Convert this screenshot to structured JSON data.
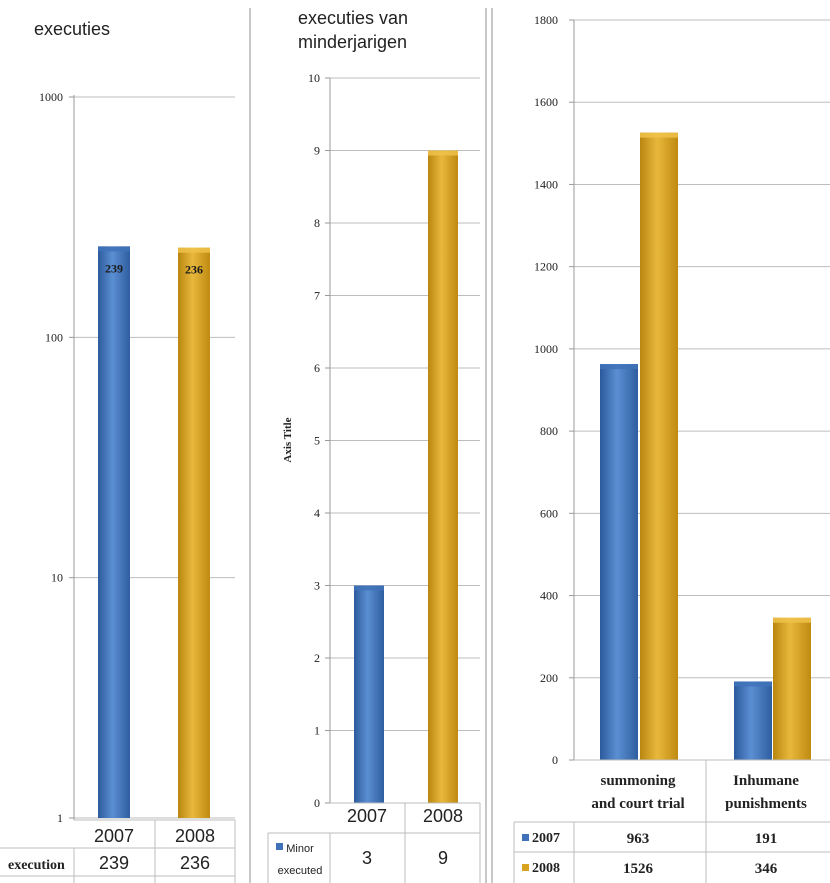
{
  "colors": {
    "y2007": "#3f72b8",
    "y2008": "#d9a322",
    "grid": "#bdbdbd",
    "divider": "#c8c8c8",
    "text": "#222222"
  },
  "chart_data": [
    {
      "type": "bar",
      "title": "executies",
      "scale": "log",
      "ylim": [
        1,
        1000
      ],
      "yticks": [
        "1",
        "10",
        "100",
        "1000"
      ],
      "categories": [
        "2007",
        "2008"
      ],
      "values": [
        239,
        236
      ],
      "data_labels": [
        "239",
        "236"
      ],
      "table": {
        "row_label": "execution",
        "values": [
          "239",
          "236"
        ]
      }
    },
    {
      "type": "bar",
      "title": "executies van minderjarigen",
      "ylabel": "Axis Title",
      "ylim": [
        0,
        10
      ],
      "yticks": [
        "0",
        "1",
        "2",
        "3",
        "4",
        "5",
        "6",
        "7",
        "8",
        "9",
        "10"
      ],
      "categories": [
        "2007",
        "2008"
      ],
      "values": [
        3,
        9
      ],
      "table": {
        "row_label": "Minor executed",
        "values": [
          "3",
          "9"
        ]
      }
    },
    {
      "type": "bar",
      "ylim": [
        0,
        1800
      ],
      "yticks": [
        "0",
        "200",
        "400",
        "600",
        "800",
        "1000",
        "1200",
        "1400",
        "1600",
        "1800"
      ],
      "categories": [
        "summoning and court trial",
        "Inhumane punishments"
      ],
      "series": [
        {
          "name": "2007",
          "values": [
            963,
            191
          ]
        },
        {
          "name": "2008",
          "values": [
            1526,
            346
          ]
        }
      ],
      "table": {
        "rows": [
          {
            "label": "2007",
            "values": [
              "963",
              "191"
            ]
          },
          {
            "label": "2008",
            "values": [
              "1526",
              "346"
            ]
          }
        ]
      }
    }
  ]
}
